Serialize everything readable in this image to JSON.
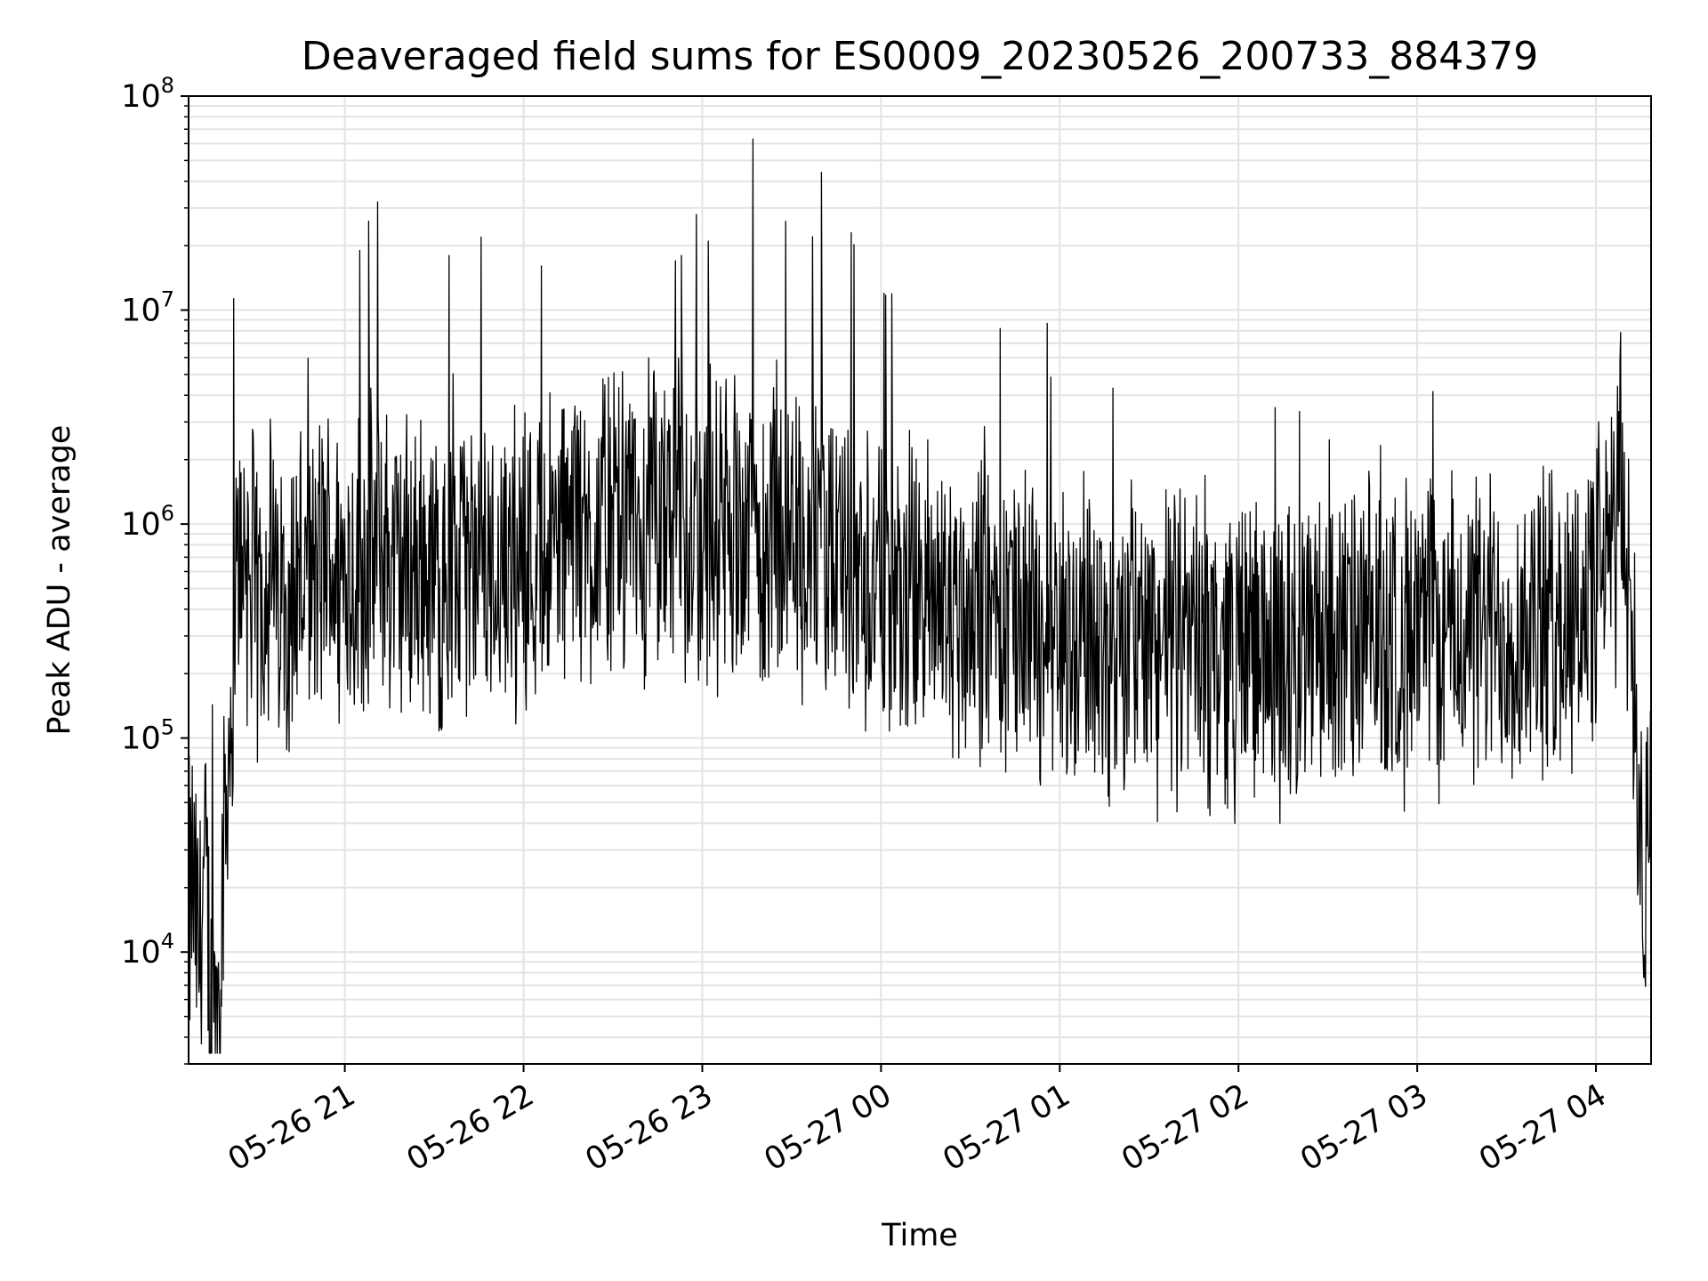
{
  "chart_data": {
    "type": "line",
    "title": "Deaveraged field sums for ES0009_20230526_200733_884379",
    "xlabel": "Time",
    "ylabel": "Peak ADU - average",
    "yscale": "log",
    "ylim": [
      3000,
      100000000
    ],
    "xlim": [
      "2023-05-26 20:07:33",
      "2023-05-27 04:18:30"
    ],
    "grid": true,
    "legend": "none",
    "line_color": "#000000",
    "grid_color": "#e3e3e3",
    "x_ticks": [
      {
        "value": "2023-05-26 21:00",
        "label": "05-26 21"
      },
      {
        "value": "2023-05-26 22:00",
        "label": "05-26 22"
      },
      {
        "value": "2023-05-26 23:00",
        "label": "05-26 23"
      },
      {
        "value": "2023-05-27 00:00",
        "label": "05-27 00"
      },
      {
        "value": "2023-05-27 01:00",
        "label": "05-27 01"
      },
      {
        "value": "2023-05-27 02:00",
        "label": "05-27 02"
      },
      {
        "value": "2023-05-27 03:00",
        "label": "05-27 03"
      },
      {
        "value": "2023-05-27 04:00",
        "label": "05-27 04"
      }
    ],
    "y_ticks": [
      {
        "value": 10000,
        "base": "10",
        "exp": "4"
      },
      {
        "value": 100000,
        "base": "10",
        "exp": "5"
      },
      {
        "value": 1000000,
        "base": "10",
        "exp": "6"
      },
      {
        "value": 10000000,
        "base": "10",
        "exp": "7"
      },
      {
        "value": 100000000,
        "base": "10",
        "exp": "8"
      }
    ],
    "series": [
      {
        "x": [
          "2023-05-26 20:07:33",
          "2023-05-26 20:09",
          "2023-05-26 20:11",
          "2023-05-26 20:13",
          "2023-05-26 20:15",
          "2023-05-26 20:17",
          "2023-05-26 20:19",
          "2023-05-26 20:21",
          "2023-05-26 20:23",
          "2023-05-26 20:25",
          "2023-05-26 20:27",
          "2023-05-26 20:29",
          "2023-05-26 20:31",
          "2023-05-26 20:33",
          "2023-05-26 20:35",
          "2023-05-26 20:37",
          "2023-05-26 20:40",
          "2023-05-26 20:43",
          "2023-05-26 20:46",
          "2023-05-26 20:49",
          "2023-05-26 20:52",
          "2023-05-26 20:55",
          "2023-05-26 20:58",
          "2023-05-26 21:03",
          "2023-05-26 21:08",
          "2023-05-26 21:13",
          "2023-05-26 21:18",
          "2023-05-26 21:25",
          "2023-05-26 21:32",
          "2023-05-26 21:40",
          "2023-05-26 21:48",
          "2023-05-26 21:55",
          "2023-05-26 22:02",
          "2023-05-26 22:10",
          "2023-05-26 22:18",
          "2023-05-26 22:28",
          "2023-05-26 22:38",
          "2023-05-26 22:48",
          "2023-05-26 22:58",
          "2023-05-26 23:08",
          "2023-05-26 23:13",
          "2023-05-26 23:20",
          "2023-05-26 23:30",
          "2023-05-26 23:40",
          "2023-05-26 23:50",
          "2023-05-27 00:00",
          "2023-05-27 00:15",
          "2023-05-27 00:30",
          "2023-05-27 00:45",
          "2023-05-27 01:00",
          "2023-05-27 01:30",
          "2023-05-27 02:00",
          "2023-05-27 02:30",
          "2023-05-27 03:00",
          "2023-05-27 03:30",
          "2023-05-27 03:50",
          "2023-05-27 04:00",
          "2023-05-27 04:05",
          "2023-05-27 04:08",
          "2023-05-27 04:10",
          "2023-05-27 04:12",
          "2023-05-27 04:14",
          "2023-05-27 04:16",
          "2023-05-27 04:18:30"
        ],
        "y": [
          15000,
          20000,
          9000,
          25000,
          6000,
          5000,
          30000,
          80000,
          300000,
          900000,
          700000,
          500000,
          400000,
          600000,
          700000,
          400000,
          500000,
          550000,
          600000,
          500000,
          650000,
          700000,
          600000,
          650000,
          700000,
          750000,
          600000,
          650000,
          550000,
          600000,
          650000,
          700000,
          750000,
          800000,
          850000,
          900000,
          1000000,
          1100000,
          1000000,
          1000000,
          1050000,
          900000,
          800000,
          700000,
          650000,
          500000,
          450000,
          400000,
          350000,
          300000,
          280000,
          260000,
          270000,
          300000,
          320000,
          350000,
          500000,
          700000,
          1500000,
          800000,
          400000,
          80000,
          20000,
          30000
        ],
        "spike_amplitude_decades": 0.85
      }
    ],
    "notable_peaks": [
      {
        "x": "2023-05-26 21:05",
        "y": 19000000
      },
      {
        "x": "2023-05-26 21:08",
        "y": 26000000
      },
      {
        "x": "2023-05-26 21:11",
        "y": 32000000
      },
      {
        "x": "2023-05-26 21:35",
        "y": 18000000
      },
      {
        "x": "2023-05-26 22:51",
        "y": 17000000
      },
      {
        "x": "2023-05-26 22:53",
        "y": 18000000
      },
      {
        "x": "2023-05-26 22:58",
        "y": 28000000
      },
      {
        "x": "2023-05-26 23:02",
        "y": 21000000
      },
      {
        "x": "2023-05-26 23:17",
        "y": 63000000
      },
      {
        "x": "2023-05-26 23:28",
        "y": 26000000
      },
      {
        "x": "2023-05-26 23:37",
        "y": 22000000
      },
      {
        "x": "2023-05-26 23:40",
        "y": 44000000
      },
      {
        "x": "2023-05-26 23:50",
        "y": 23000000
      },
      {
        "x": "2023-05-27 00:01",
        "y": 12000000
      },
      {
        "x": "2023-05-27 00:40",
        "y": 8200000
      },
      {
        "x": "2023-05-27 04:06",
        "y": 2700000
      },
      {
        "x": "2023-05-26 20:16",
        "y": 4700
      }
    ]
  }
}
